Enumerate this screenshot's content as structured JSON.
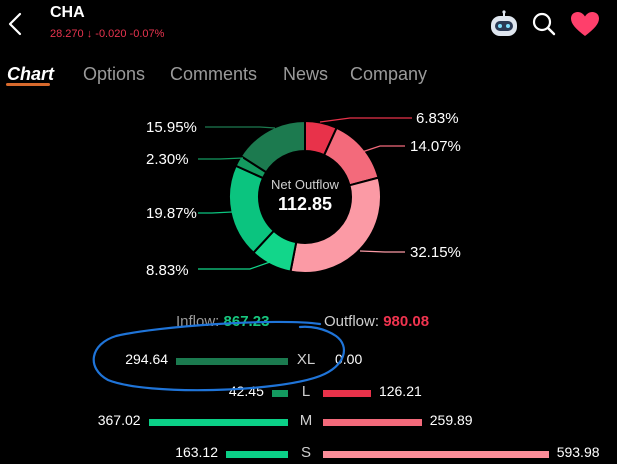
{
  "header": {
    "ticker": "CHA",
    "price": "28.270",
    "change": "-0.020",
    "change_pct": "-0.07%",
    "down_arrow": "↓",
    "colors": {
      "negative": "#e9344f"
    }
  },
  "icons": [
    "back-icon",
    "robot-assistant-icon",
    "search-icon",
    "heart-icon"
  ],
  "tabs": [
    {
      "label": "Chart",
      "active": true
    },
    {
      "label": "Options",
      "active": false
    },
    {
      "label": "Comments",
      "active": false
    },
    {
      "label": "News",
      "active": false
    },
    {
      "label": "Company",
      "active": false
    }
  ],
  "chart_data": {
    "type": "pie",
    "center_label": "Net Outflow",
    "center_value": "112.85",
    "slices": [
      {
        "label": "6.83%",
        "value": 6.83,
        "color": "#e8324a"
      },
      {
        "label": "14.07%",
        "value": 14.07,
        "color": "#f36a7b"
      },
      {
        "label": "32.15%",
        "value": 32.15,
        "color": "#fb9aa5"
      },
      {
        "label": "8.83%",
        "value": 8.83,
        "color": "#12d68a"
      },
      {
        "label": "19.87%",
        "value": 19.87,
        "color": "#0bc47f"
      },
      {
        "label": "2.30%",
        "value": 2.3,
        "color": "#139a5f"
      },
      {
        "label": "15.95%",
        "value": 15.95,
        "color": "#1c7a4f"
      }
    ]
  },
  "flow": {
    "inflow_label": "Inflow:",
    "inflow_value": "867.23",
    "outflow_label": "Outflow:",
    "outflow_value": "980.08",
    "colors": {
      "inflow": "#17c77f",
      "outflow": "#f0344f"
    },
    "rows": [
      {
        "size": "XL",
        "inflow": 294.64,
        "inflow_text": "294.64",
        "outflow": 0.0,
        "outflow_text": "0.00",
        "in_color": "#1b7a4f",
        "out_color": "#f0344f"
      },
      {
        "size": "L",
        "inflow": 42.45,
        "inflow_text": "42.45",
        "outflow": 126.21,
        "outflow_text": "126.21",
        "in_color": "#139a5f",
        "out_color": "#e8324a"
      },
      {
        "size": "M",
        "inflow": 367.02,
        "inflow_text": "367.02",
        "outflow": 259.89,
        "outflow_text": "259.89",
        "in_color": "#0bd087",
        "out_color": "#f36a7b"
      },
      {
        "size": "S",
        "inflow": 163.12,
        "inflow_text": "163.12",
        "outflow": 593.98,
        "outflow_text": "593.98",
        "in_color": "#0bd087",
        "out_color": "#fb8d99"
      }
    ]
  }
}
